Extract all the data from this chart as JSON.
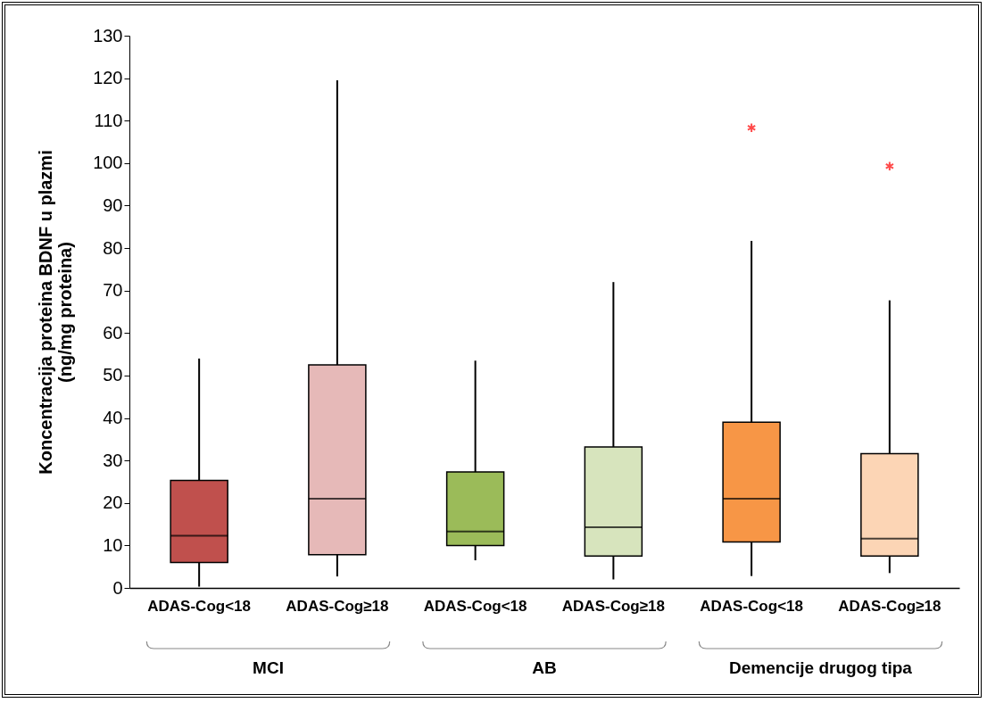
{
  "chart_data": {
    "type": "box",
    "ylabel": "Koncentracija proteina BDNF u plazmi\n(ng/mg proteina)",
    "categories": [
      "ADAS-Cog<18",
      "ADAS-Cog≥18",
      "ADAS-Cog<18",
      "ADAS-Cog≥18",
      "ADAS-Cog<18",
      "ADAS-Cog≥18"
    ],
    "colors": [
      "#c0504d",
      "#e6b9b8",
      "#9bbb59",
      "#d7e4bd",
      "#f79646",
      "#fcd5b5"
    ],
    "boxes": [
      {
        "low": 0.3,
        "q1": 6,
        "median": 12.3,
        "q3": 25.3,
        "high": 54
      },
      {
        "low": 2.7,
        "q1": 7.8,
        "median": 21,
        "q3": 52.5,
        "high": 119.5
      },
      {
        "low": 6.5,
        "q1": 10,
        "median": 13.3,
        "q3": 27.3,
        "high": 53.5
      },
      {
        "low": 2,
        "q1": 7.5,
        "median": 14.3,
        "q3": 33.2,
        "high": 72
      },
      {
        "low": 2.8,
        "q1": 10.8,
        "median": 21,
        "q3": 39,
        "high": 81.7,
        "outliers": [
          108.3
        ]
      },
      {
        "low": 3.5,
        "q1": 7.5,
        "median": 11.6,
        "q3": 31.6,
        "high": 67.7,
        "outliers": [
          99.3
        ]
      }
    ],
    "annotations": [
      "MCI",
      "AB",
      "Demencije drugog tipa"
    ],
    "ylim": [
      0,
      130
    ],
    "yticks": [
      0,
      10,
      20,
      30,
      40,
      50,
      60,
      70,
      80,
      90,
      100,
      110,
      120,
      130
    ],
    "grid": false,
    "legend": false,
    "marker": "star"
  }
}
